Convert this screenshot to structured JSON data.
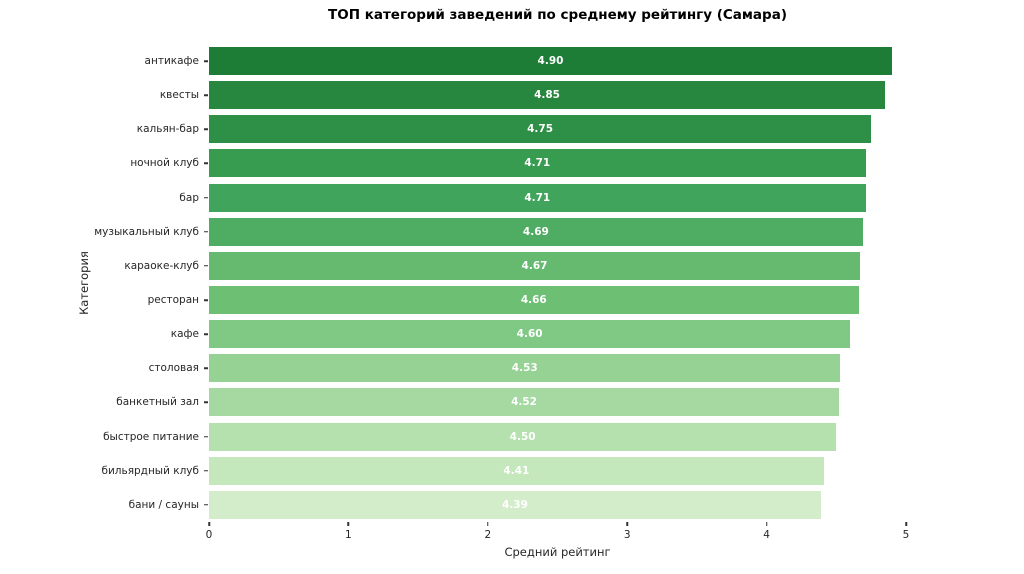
{
  "chart_data": {
    "type": "bar",
    "orientation": "horizontal",
    "title": "ТОП категорий заведений по среднему рейтингу (Самара)",
    "xlabel": "Средний рейтинг",
    "ylabel": "Категория",
    "xlim": [
      0,
      5
    ],
    "xticks": [
      "0",
      "1",
      "2",
      "3",
      "4",
      "5"
    ],
    "grid": false,
    "legend": false,
    "background": "#ffffff",
    "value_label_color": "#ffffff",
    "categories": [
      "антикафе",
      "квесты",
      "кальян-бар",
      "ночной клуб",
      "бар",
      "музыкальный клуб",
      "караоке-клуб",
      "ресторан",
      "кафе",
      "столовая",
      "банкетный зал",
      "быстрое питание",
      "бильярдный клуб",
      "бани / сауны"
    ],
    "values": [
      4.9,
      4.85,
      4.75,
      4.71,
      4.71,
      4.69,
      4.67,
      4.66,
      4.6,
      4.53,
      4.52,
      4.5,
      4.41,
      4.39
    ],
    "value_labels": [
      "4.90",
      "4.85",
      "4.75",
      "4.71",
      "4.71",
      "4.69",
      "4.67",
      "4.66",
      "4.60",
      "4.53",
      "4.52",
      "4.50",
      "4.41",
      "4.39"
    ],
    "bar_colors": [
      "#1d7d37",
      "#28873f",
      "#2e9046",
      "#379c50",
      "#40a45c",
      "#4fad63",
      "#65ba70",
      "#6dc073",
      "#80c985",
      "#96d294",
      "#a5d9a1",
      "#b5e1ae",
      "#c4e8bc",
      "#d3edca"
    ]
  }
}
